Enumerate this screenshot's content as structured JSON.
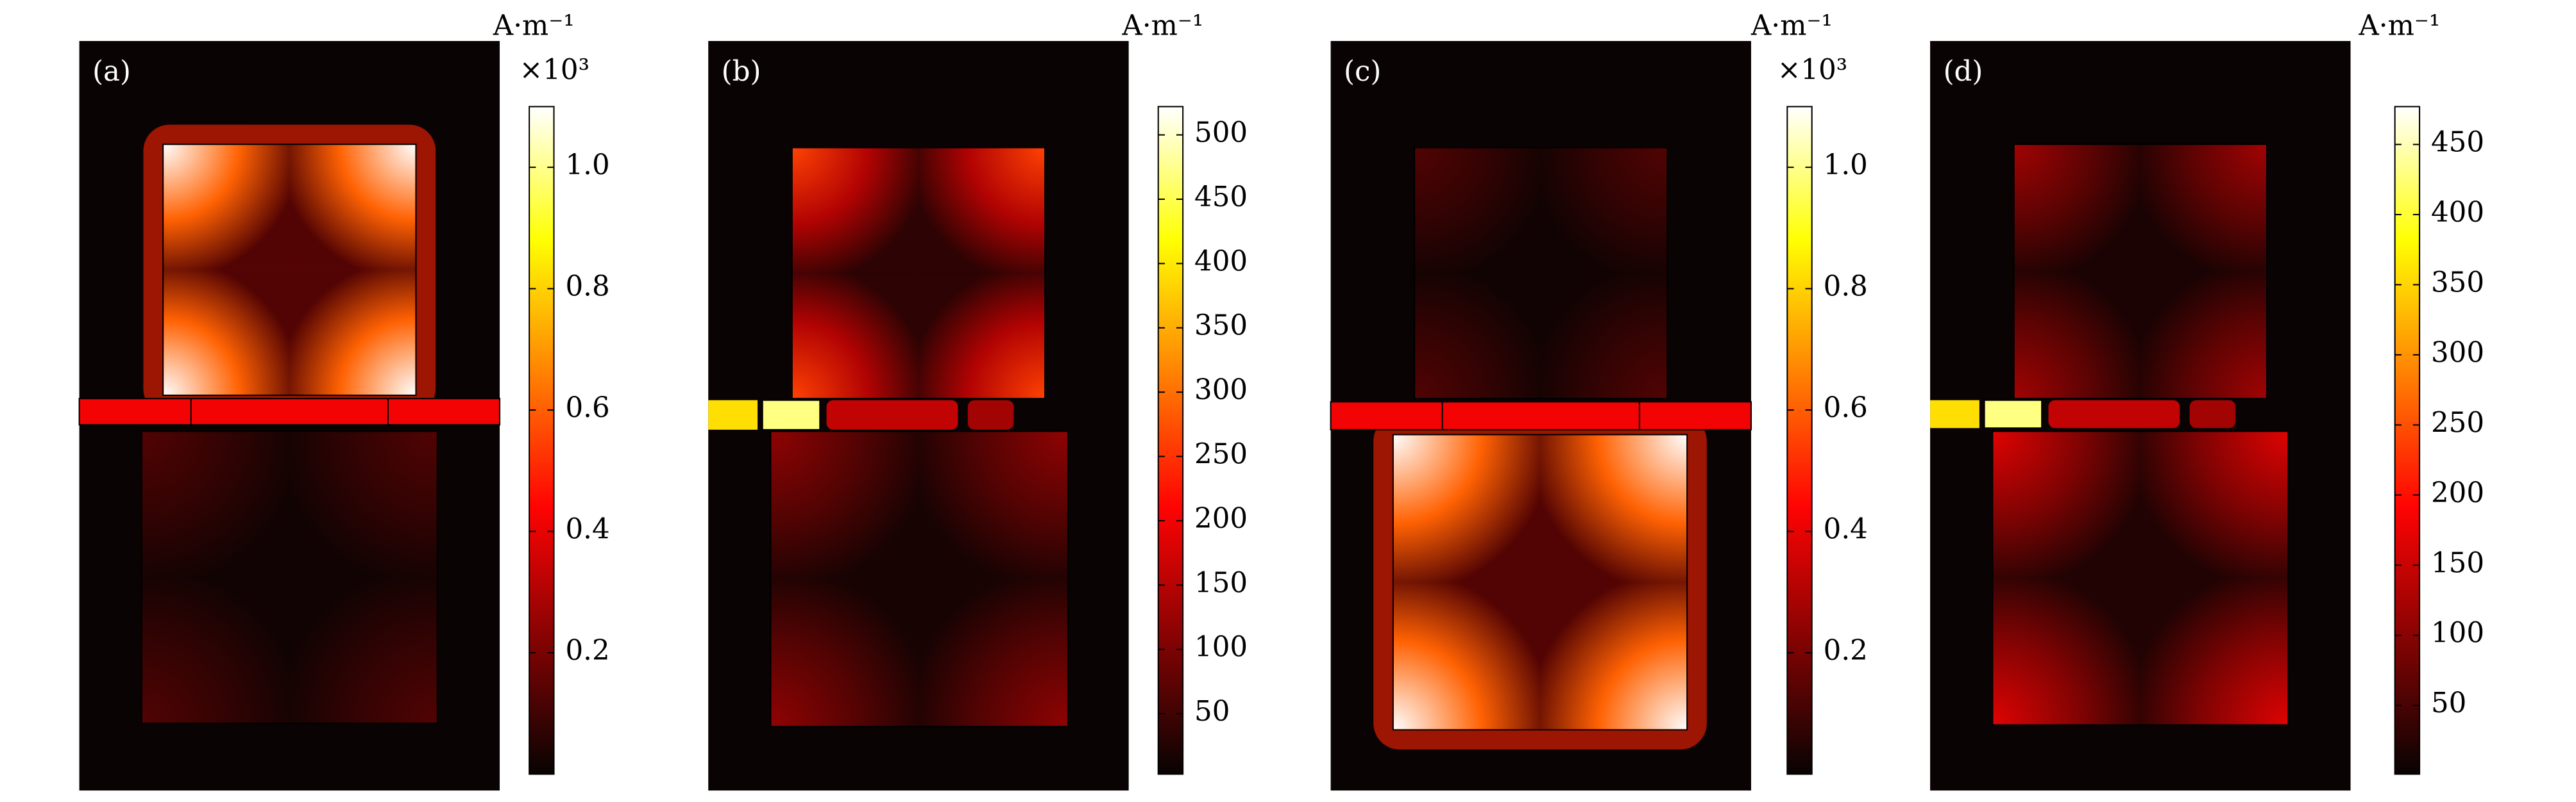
{
  "chart_data": [
    {
      "type": "heatmap",
      "panel_label": "(a)",
      "colorbar_label": "A·m⁻¹",
      "colorbar_scale": "×10³",
      "colormap": "hot",
      "clim": [
        0,
        1.1
      ],
      "cticks": [
        0.2,
        0.4,
        0.6,
        0.8,
        {
          "value": 1,
          "label": "1.0"
        }
      ]
    },
    {
      "type": "heatmap",
      "panel_label": "(b)",
      "colorbar_label": "A·m⁻¹",
      "colormap": "hot",
      "clim": [
        3,
        522
      ],
      "cticks": [
        50,
        100,
        150,
        200,
        250,
        300,
        350,
        400,
        450,
        500
      ]
    },
    {
      "type": "heatmap",
      "panel_label": "(c)",
      "colorbar_label": "A·m⁻¹",
      "colorbar_scale": "×10³",
      "colormap": "hot",
      "clim": [
        0,
        1.1
      ],
      "cticks": [
        0.2,
        0.4,
        0.6,
        0.8,
        {
          "value": 1,
          "label": "1.0"
        }
      ]
    },
    {
      "type": "heatmap",
      "panel_label": "(d)",
      "colorbar_label": "A·m⁻¹",
      "colormap": "hot",
      "clim": [
        1,
        477
      ],
      "cticks": [
        50,
        100,
        150,
        200,
        250,
        300,
        350,
        400,
        450
      ]
    }
  ]
}
